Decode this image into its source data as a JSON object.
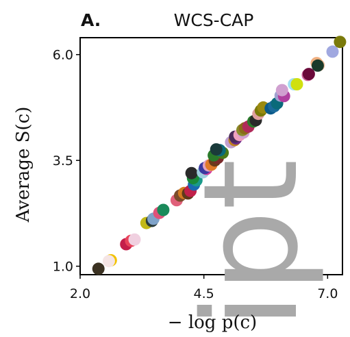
{
  "chart_data": {
    "type": "scatter",
    "panel_label": "A.",
    "title": "WCS-CAP",
    "xlabel": "− log p(c)",
    "ylabel": "Average S(c)",
    "xlim": [
      2.0,
      7.3
    ],
    "ylim": [
      0.8,
      6.4
    ],
    "xticks": [
      "2.0",
      "4.5",
      "7.0"
    ],
    "yticks": [
      "1.0",
      "3.5",
      "6.0"
    ],
    "grid": false,
    "watermark": "ipt",
    "points": [
      {
        "x": 2.37,
        "y": 0.94,
        "color": "#3b3222"
      },
      {
        "x": 2.62,
        "y": 1.14,
        "color": "#f2c200"
      },
      {
        "x": 2.58,
        "y": 1.12,
        "color": "#f5e5e5"
      },
      {
        "x": 2.93,
        "y": 1.52,
        "color": "#c41e4a"
      },
      {
        "x": 3.03,
        "y": 1.6,
        "color": "#e8435a"
      },
      {
        "x": 3.1,
        "y": 1.63,
        "color": "#f0d0e0"
      },
      {
        "x": 3.34,
        "y": 2.02,
        "color": "#c2b818"
      },
      {
        "x": 3.45,
        "y": 2.07,
        "color": "#2a3b3a"
      },
      {
        "x": 3.48,
        "y": 2.12,
        "color": "#7fa3c9"
      },
      {
        "x": 3.6,
        "y": 2.26,
        "color": "#e0527a"
      },
      {
        "x": 3.68,
        "y": 2.33,
        "color": "#1a8a5a"
      },
      {
        "x": 3.95,
        "y": 2.56,
        "color": "#e0607a"
      },
      {
        "x": 4.02,
        "y": 2.67,
        "color": "#7a4a2a"
      },
      {
        "x": 4.1,
        "y": 2.73,
        "color": "#d27a20"
      },
      {
        "x": 4.18,
        "y": 2.72,
        "color": "#5e3a1a"
      },
      {
        "x": 4.23,
        "y": 2.78,
        "color": "#c0204a"
      },
      {
        "x": 4.3,
        "y": 2.93,
        "color": "#1a6ab0"
      },
      {
        "x": 4.35,
        "y": 3.03,
        "color": "#1a9a8a"
      },
      {
        "x": 4.28,
        "y": 3.08,
        "color": "#1a8a3a"
      },
      {
        "x": 4.25,
        "y": 3.2,
        "color": "#2a2a2a"
      },
      {
        "x": 4.48,
        "y": 3.22,
        "color": "#a0d0e0"
      },
      {
        "x": 4.55,
        "y": 3.3,
        "color": "#d43a9a"
      },
      {
        "x": 4.52,
        "y": 3.32,
        "color": "#3a3aa0"
      },
      {
        "x": 4.6,
        "y": 3.38,
        "color": "#e0a0c0"
      },
      {
        "x": 4.65,
        "y": 3.4,
        "color": "#e07a2a"
      },
      {
        "x": 4.72,
        "y": 3.5,
        "color": "#6a3a1a"
      },
      {
        "x": 4.78,
        "y": 3.56,
        "color": "#7a2a2a"
      },
      {
        "x": 4.7,
        "y": 3.62,
        "color": "#2a7a2a"
      },
      {
        "x": 4.88,
        "y": 3.68,
        "color": "#4a7a1a"
      },
      {
        "x": 4.82,
        "y": 3.74,
        "color": "#0a6a7a"
      },
      {
        "x": 4.75,
        "y": 3.76,
        "color": "#1a3a3a"
      },
      {
        "x": 5.05,
        "y": 3.93,
        "color": "#c0a0d0"
      },
      {
        "x": 5.12,
        "y": 3.98,
        "color": "#c08020"
      },
      {
        "x": 5.15,
        "y": 4.02,
        "color": "#6a2a8a"
      },
      {
        "x": 5.13,
        "y": 4.06,
        "color": "#4a2a5a"
      },
      {
        "x": 5.22,
        "y": 4.1,
        "color": "#f0a0c0"
      },
      {
        "x": 5.3,
        "y": 4.16,
        "color": "#d0a0d0"
      },
      {
        "x": 5.28,
        "y": 4.22,
        "color": "#8a8a2a"
      },
      {
        "x": 5.33,
        "y": 4.26,
        "color": "#8a6a1a"
      },
      {
        "x": 5.4,
        "y": 4.3,
        "color": "#b02a5a"
      },
      {
        "x": 5.5,
        "y": 4.42,
        "color": "#2a7a2a"
      },
      {
        "x": 5.55,
        "y": 4.45,
        "color": "#2a2a2a"
      },
      {
        "x": 5.6,
        "y": 4.6,
        "color": "#e0a0a0"
      },
      {
        "x": 5.65,
        "y": 4.68,
        "color": "#7a7a0a"
      },
      {
        "x": 5.7,
        "y": 4.75,
        "color": "#9a8a10"
      },
      {
        "x": 5.85,
        "y": 4.73,
        "color": "#0a5a8a"
      },
      {
        "x": 5.92,
        "y": 4.78,
        "color": "#1a6a9a"
      },
      {
        "x": 5.98,
        "y": 4.85,
        "color": "#0a6a7a"
      },
      {
        "x": 6.05,
        "y": 5.03,
        "color": "#a0a0d0"
      },
      {
        "x": 6.12,
        "y": 5.02,
        "color": "#b040a0"
      },
      {
        "x": 6.08,
        "y": 5.16,
        "color": "#d0a0d0"
      },
      {
        "x": 6.32,
        "y": 5.3,
        "color": "#a0e0f0"
      },
      {
        "x": 6.38,
        "y": 5.3,
        "color": "#d0e010"
      },
      {
        "x": 6.6,
        "y": 5.52,
        "color": "#d06aa0"
      },
      {
        "x": 6.62,
        "y": 5.54,
        "color": "#6a0a3a"
      },
      {
        "x": 6.82,
        "y": 5.75,
        "color": "#f0c0a0"
      },
      {
        "x": 6.78,
        "y": 5.8,
        "color": "#f0b080"
      },
      {
        "x": 6.8,
        "y": 5.74,
        "color": "#1a3a2a"
      },
      {
        "x": 7.1,
        "y": 6.07,
        "color": "#a0a8e0"
      },
      {
        "x": 7.25,
        "y": 6.3,
        "color": "#7a7a0a"
      }
    ]
  }
}
